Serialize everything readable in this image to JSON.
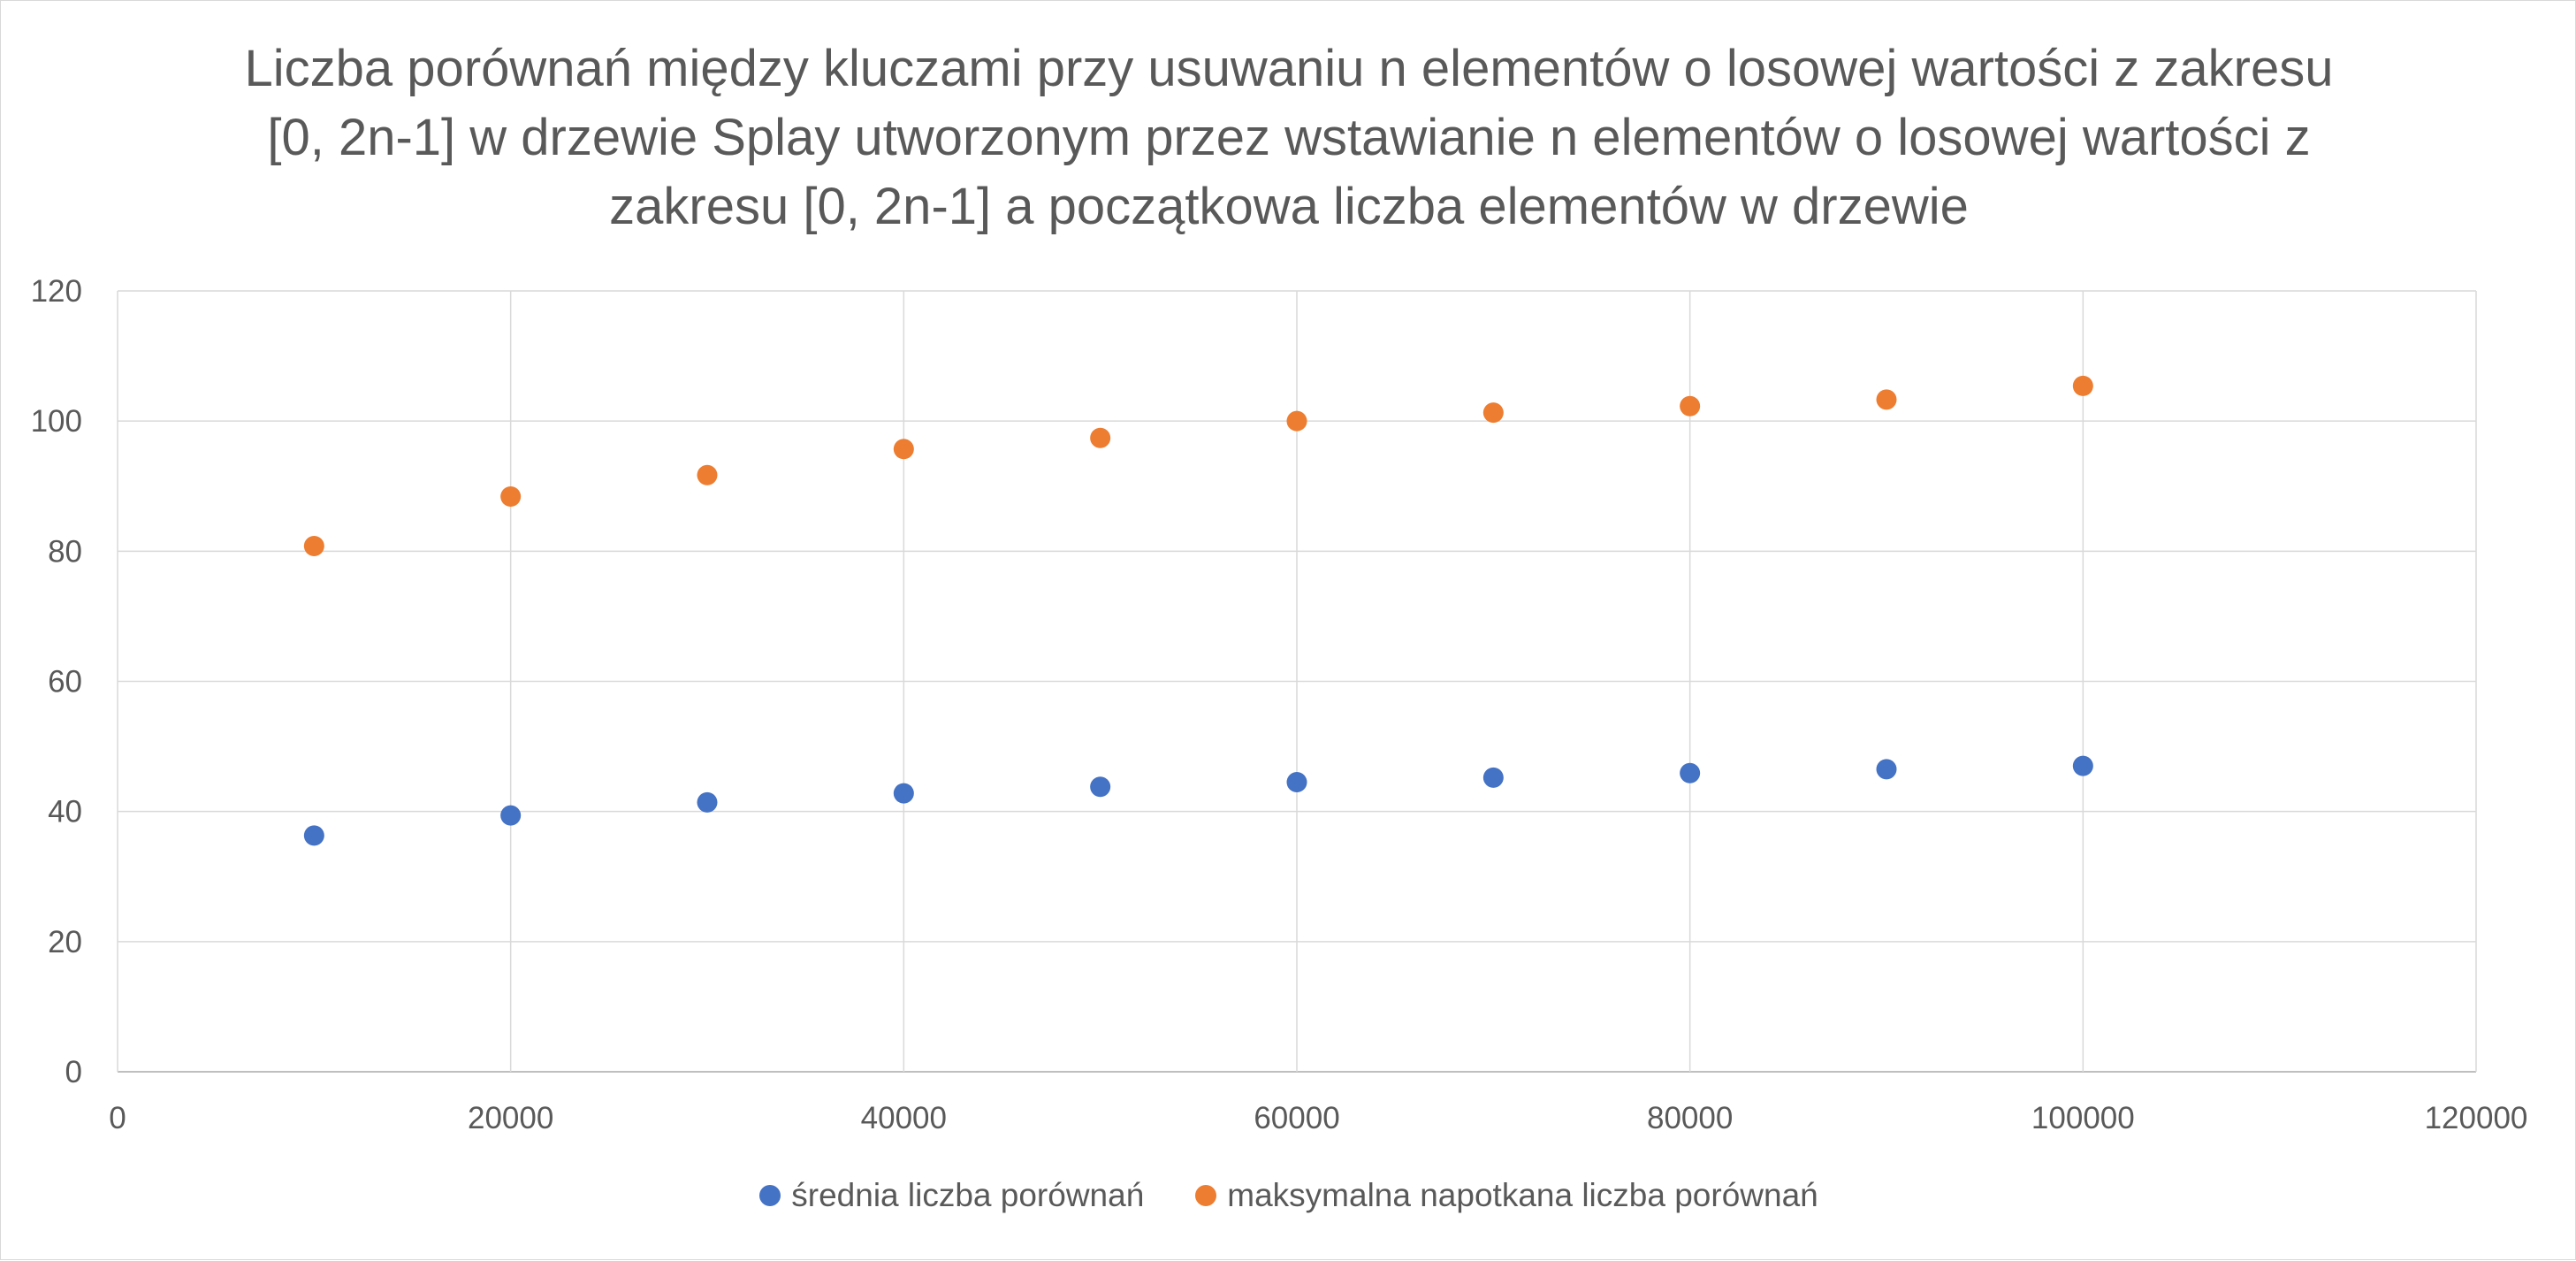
{
  "chart_data": {
    "type": "scatter",
    "title": "Liczba porównań między kluczami przy usuwaniu n elementów o losowej wartości z zakresu [0, 2n-1] w drzewie Splay utworzonym przez wstawianie n elementów o losowej wartości z zakresu [0, 2n-1] a początkowa liczba elementów w drzewie",
    "xlabel": "",
    "ylabel": "",
    "xlim": [
      0,
      120000
    ],
    "ylim": [
      0,
      120
    ],
    "xticks": [
      0,
      20000,
      40000,
      60000,
      80000,
      100000,
      120000
    ],
    "yticks": [
      0,
      20,
      40,
      60,
      80,
      100,
      120
    ],
    "xtick_labels": [
      "0",
      "20000",
      "40000",
      "60000",
      "80000",
      "100000",
      "120000"
    ],
    "ytick_labels": [
      "0",
      "20",
      "40",
      "60",
      "80",
      "100",
      "120"
    ],
    "grid": true,
    "legend_position": "bottom",
    "x": [
      10000,
      20000,
      30000,
      40000,
      50000,
      60000,
      70000,
      80000,
      90000,
      100000
    ],
    "series": [
      {
        "name": "średnia liczba porównań",
        "color": "#4472c4",
        "values": [
          36.3,
          39.4,
          41.4,
          42.8,
          43.8,
          44.5,
          45.2,
          45.9,
          46.5,
          47.0
        ]
      },
      {
        "name": "maksymalna napotkana liczba porównań",
        "color": "#ed7d31",
        "values": [
          80.8,
          88.4,
          91.7,
          95.7,
          97.4,
          100.0,
          101.3,
          102.3,
          103.3,
          105.4
        ]
      }
    ]
  }
}
